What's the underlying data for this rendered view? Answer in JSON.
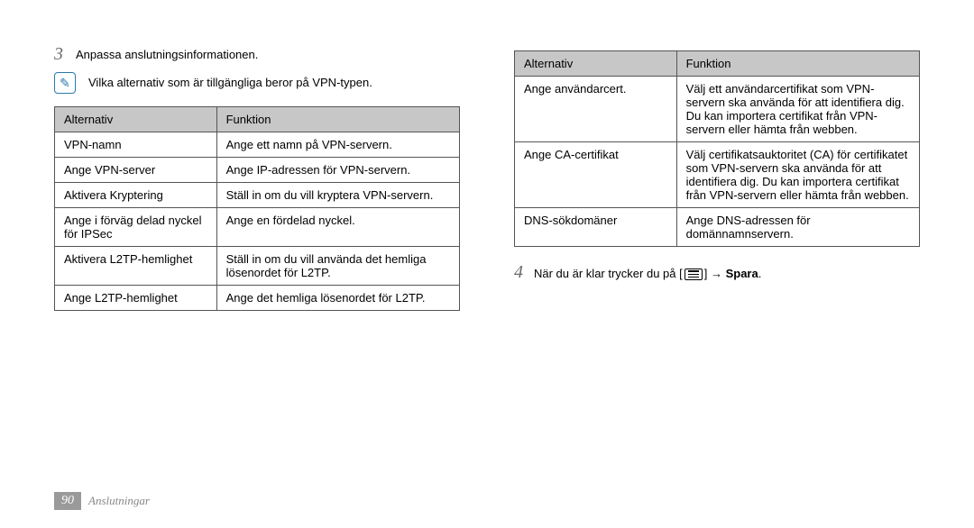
{
  "left": {
    "step_number": "3",
    "step_text": "Anpassa anslutningsinformationen.",
    "note_text": "Vilka alternativ som är tillgängliga beror på VPN-typen.",
    "table": {
      "header": [
        "Alternativ",
        "Funktion"
      ],
      "rows": [
        [
          "VPN-namn",
          "Ange ett namn på VPN-servern."
        ],
        [
          "Ange VPN-server",
          "Ange IP-adressen för VPN-servern."
        ],
        [
          "Aktivera Kryptering",
          "Ställ in om du vill kryptera VPN-servern."
        ],
        [
          "Ange i förväg delad nyckel för IPSec",
          "Ange en fördelad nyckel."
        ],
        [
          "Aktivera L2TP-hemlighet",
          "Ställ in om du vill använda det hemliga lösenordet för L2TP."
        ],
        [
          "Ange L2TP-hemlighet",
          "Ange det hemliga lösenordet för L2TP."
        ]
      ]
    }
  },
  "right": {
    "table": {
      "header": [
        "Alternativ",
        "Funktion"
      ],
      "rows": [
        [
          "Ange användarcert.",
          "Välj ett användarcertifikat som VPN-servern ska använda för att identifiera dig. Du kan importera certifikat från VPN-servern eller hämta från webben."
        ],
        [
          "Ange CA-certifikat",
          "Välj certifikatsauktoritet (CA) för certifikatet som VPN-servern ska använda för att identifiera dig. Du kan importera certifikat från VPN-servern eller hämta från webben."
        ],
        [
          "DNS-sökdomäner",
          "Ange DNS-adressen för domännamnservern."
        ]
      ]
    },
    "step4_number": "4",
    "step4_prefix": "När du är klar trycker du på [",
    "step4_suffix_arrow": "] → ",
    "step4_bold": "Spara",
    "step4_end": "."
  },
  "footer": {
    "page": "90",
    "title": "Anslutningar"
  },
  "style": {
    "header_bg": "#c7c7c7",
    "border_color": "#555555",
    "note_icon_color": "#2a7aaa",
    "step_number_color": "#6a6a6a",
    "footer_box_bg": "#9a9a9a",
    "font_size_body": 13,
    "font_size_step_number": 20
  }
}
